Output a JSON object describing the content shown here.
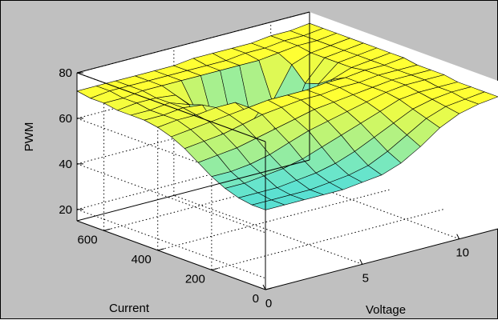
{
  "chart_data": {
    "type": "surface",
    "title": "",
    "xlabel": "Voltage",
    "ylabel": "Current",
    "zlabel": "PWM",
    "xlim": [
      0,
      12
    ],
    "ylim": [
      0,
      700
    ],
    "zlim": [
      15,
      80
    ],
    "xticks": [
      "0",
      "5",
      "10"
    ],
    "yticks": [
      "0",
      "200",
      "400",
      "600"
    ],
    "zticks": [
      "20",
      "40",
      "60",
      "80"
    ],
    "grid": true,
    "colormap": [
      "#00c8ff",
      "#6ee6c8",
      "#ffff33"
    ],
    "voltage": [
      0,
      1,
      2,
      3,
      4,
      5,
      6,
      7,
      8,
      9,
      10,
      11,
      12
    ],
    "current": [
      0,
      50,
      100,
      150,
      200,
      250,
      300,
      350,
      400,
      450,
      500,
      550,
      600,
      650,
      700
    ],
    "pwm": [
      [
        50,
        50,
        50,
        50,
        50,
        51,
        52,
        55,
        60,
        66,
        70,
        72,
        73
      ],
      [
        50,
        50,
        50,
        50,
        51,
        52,
        54,
        58,
        63,
        68,
        71,
        72,
        73
      ],
      [
        51,
        51,
        51,
        52,
        53,
        55,
        58,
        62,
        66,
        70,
        72,
        73,
        73
      ],
      [
        53,
        53,
        54,
        55,
        57,
        60,
        63,
        66,
        69,
        72,
        73,
        73,
        73
      ],
      [
        56,
        56,
        57,
        59,
        62,
        65,
        67,
        69,
        71,
        73,
        74,
        74,
        74
      ],
      [
        60,
        61,
        62,
        64,
        66,
        68,
        70,
        71,
        72,
        73,
        74,
        74,
        74
      ],
      [
        64,
        65,
        66,
        68,
        70,
        71,
        72,
        72,
        73,
        73,
        74,
        74,
        74
      ],
      [
        67,
        68,
        69,
        70,
        71,
        72,
        72,
        72,
        73,
        73,
        74,
        74,
        75
      ],
      [
        69,
        70,
        70,
        71,
        71,
        62,
        55,
        52,
        60,
        70,
        73,
        74,
        75
      ],
      [
        70,
        70,
        71,
        70,
        55,
        42,
        38,
        36,
        48,
        66,
        73,
        74,
        75
      ],
      [
        70,
        70,
        71,
        68,
        50,
        38,
        34,
        33,
        44,
        64,
        73,
        74,
        75
      ],
      [
        70,
        71,
        71,
        70,
        62,
        52,
        47,
        46,
        56,
        70,
        73,
        74,
        75
      ],
      [
        71,
        71,
        72,
        72,
        72,
        72,
        72,
        72,
        72,
        73,
        74,
        74,
        75
      ],
      [
        71,
        72,
        72,
        72,
        72,
        72,
        72,
        72,
        73,
        73,
        74,
        74,
        75
      ],
      [
        72,
        72,
        72,
        72,
        72,
        72,
        73,
        73,
        73,
        73,
        74,
        74,
        75
      ]
    ]
  }
}
